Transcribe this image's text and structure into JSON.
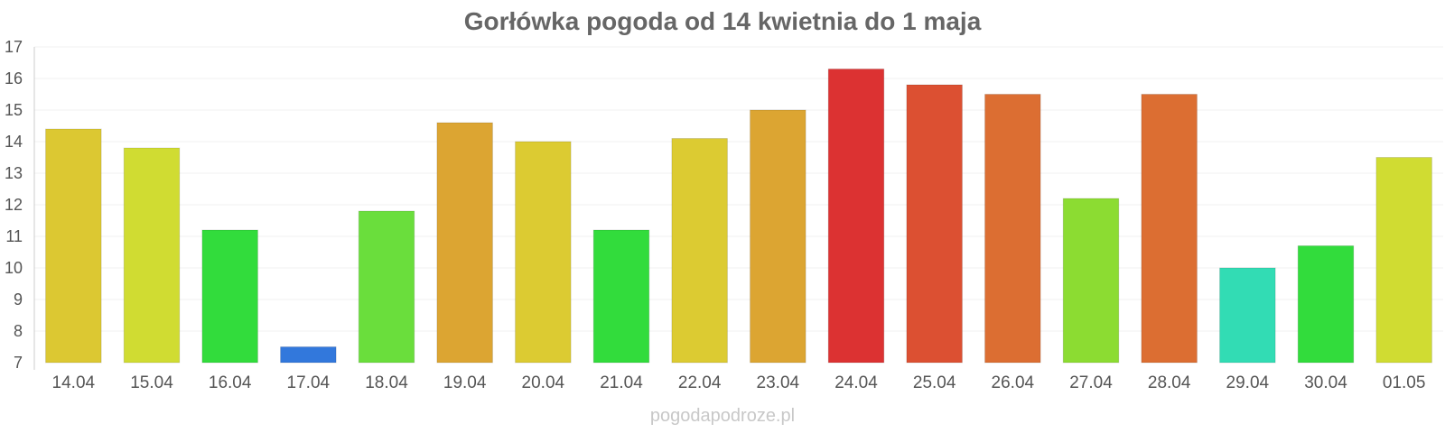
{
  "chart_data": {
    "type": "bar",
    "title": "Gorłówka pogoda od 14 kwietnia do 1 maja",
    "xlabel": "",
    "ylabel": "",
    "ylim": [
      7,
      17
    ],
    "yticks": [
      7,
      8,
      9,
      10,
      11,
      12,
      13,
      14,
      15,
      16,
      17
    ],
    "grid": true,
    "legend": "none",
    "categories": [
      "14.04",
      "15.04",
      "16.04",
      "17.04",
      "18.04",
      "19.04",
      "20.04",
      "21.04",
      "22.04",
      "23.04",
      "24.04",
      "25.04",
      "26.04",
      "27.04",
      "28.04",
      "29.04",
      "30.04",
      "01.05"
    ],
    "values": [
      14.4,
      13.8,
      11.2,
      7.5,
      11.8,
      14.6,
      14.0,
      11.2,
      14.1,
      15.0,
      16.3,
      15.8,
      15.5,
      12.2,
      15.5,
      10.0,
      10.7,
      13.5
    ],
    "colors": [
      "#dcc832",
      "#d0dc32",
      "#32dc3c",
      "#3278dc",
      "#6ade3c",
      "#dca532",
      "#dccb32",
      "#32dc3c",
      "#dccb32",
      "#dca532",
      "#dc3232",
      "#dc5032",
      "#dc6e32",
      "#8cdc32",
      "#dc6e32",
      "#32dcb4",
      "#32dc3c",
      "#d0dc32"
    ]
  },
  "watermark": "pogodapodroze.pl"
}
